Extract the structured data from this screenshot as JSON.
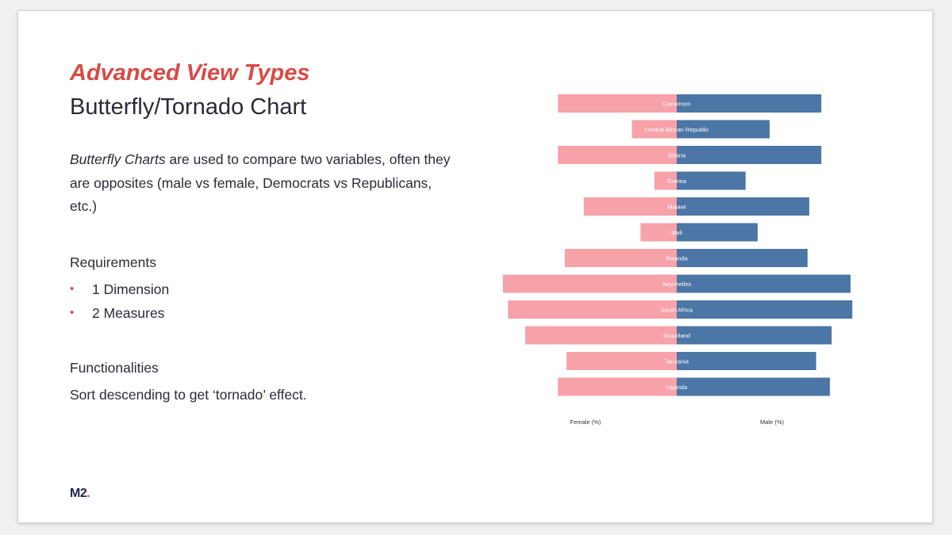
{
  "slide": {
    "kicker": "Advanced View Types",
    "title": "Butterfly/Tornado Chart",
    "description": {
      "emphasis": "Butterfly Charts",
      "rest": " are used to compare two variables, often they are opposites (male vs female, Democrats vs Republicans, etc.)"
    },
    "requirements": {
      "heading": "Requirements",
      "items": [
        "1 Dimension",
        "2 Measures"
      ],
      "bullet_glyph": "•"
    },
    "functionalities": {
      "heading": "Functionalities",
      "text": "Sort descending to get ‘tornado’ effect."
    },
    "logo": {
      "text": "M2",
      "dot": "."
    }
  },
  "chart_data": {
    "type": "bar",
    "orientation": "horizontal-diverging",
    "categories": [
      "Cameroon",
      "Central African Republic",
      "Ghana",
      "Guinea",
      "Malawi",
      "Mali",
      "Rwanda",
      "Seychelles",
      "South Africa",
      "Swaziland",
      "Tanzania",
      "Uganda"
    ],
    "series": [
      {
        "name": "Female (%)",
        "color": "#f7a1a9",
        "values": [
          69,
          26,
          69,
          13,
          54,
          21,
          65,
          101,
          98,
          88,
          64,
          69
        ]
      },
      {
        "name": "Male (%)",
        "color": "#4b76a5",
        "values": [
          84,
          54,
          84,
          40,
          77,
          47,
          76,
          101,
          102,
          90,
          81,
          89
        ]
      }
    ],
    "grid": false,
    "legend": "none"
  }
}
